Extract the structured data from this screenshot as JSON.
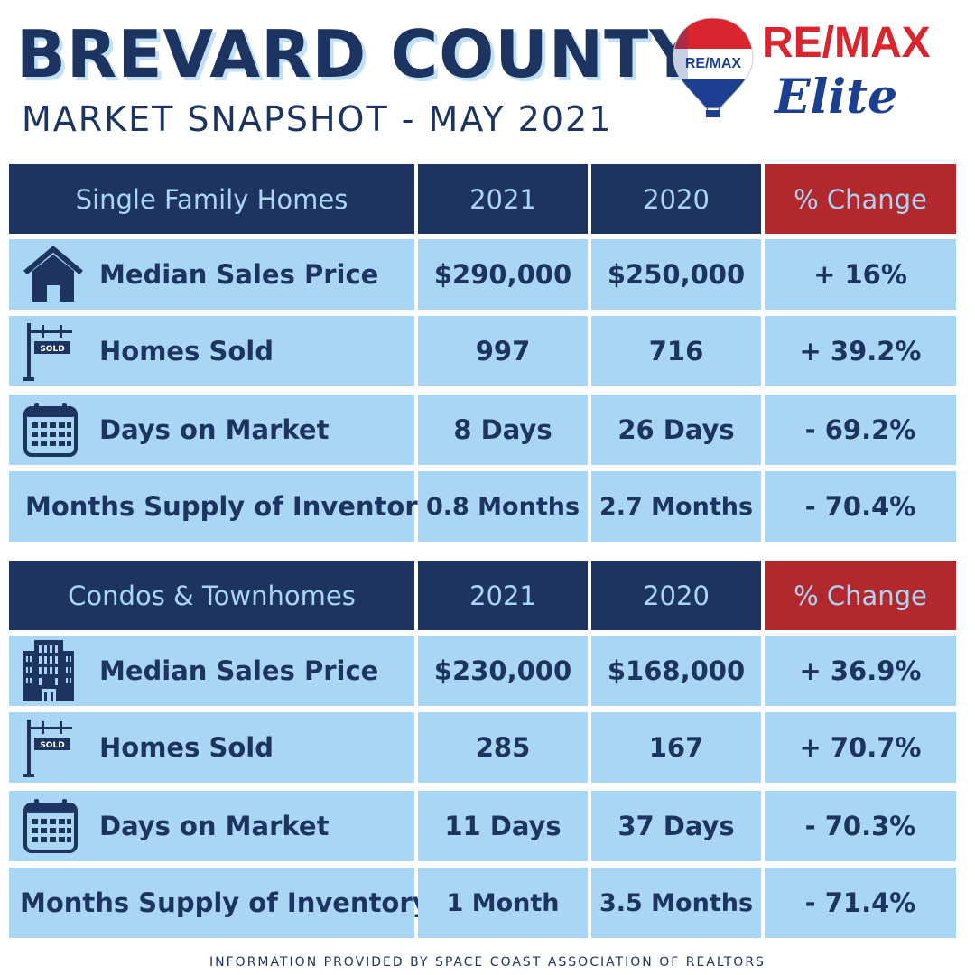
{
  "header": {
    "title": "BREVARD COUNTY",
    "subtitle": "MARKET SNAPSHOT - MAY 2021"
  },
  "logo": {
    "balloon_text": "RE/MAX",
    "brand": "RE/MAX",
    "sub_brand": "Elite",
    "colors": {
      "red": "#d9252e",
      "blue": "#1d3f8f"
    }
  },
  "colors": {
    "navy": "#1d3461",
    "light_blue": "#a9d6f5",
    "red": "#b3282d"
  },
  "tables": [
    {
      "category": "Single Family Homes",
      "col_2021": "2021",
      "col_2020": "2020",
      "col_change": "% Change",
      "rows": [
        {
          "icon": "house-icon",
          "label": "Median Sales Price",
          "v2021": "$290,000",
          "v2020": "$250,000",
          "change": "+ 16%"
        },
        {
          "icon": "sold-sign-icon",
          "label": "Homes Sold",
          "v2021": "997",
          "v2020": "716",
          "change": "+ 39.2%"
        },
        {
          "icon": "calendar-icon",
          "label": "Days on Market",
          "v2021": "8 Days",
          "v2020": "26 Days",
          "change": "- 69.2%"
        },
        {
          "icon": "",
          "label": "Months Supply of Inventory",
          "v2021": "0.8 Months",
          "v2020": "2.7 Months",
          "change": "- 70.4%"
        }
      ]
    },
    {
      "category": "Condos & Townhomes",
      "col_2021": "2021",
      "col_2020": "2020",
      "col_change": "% Change",
      "rows": [
        {
          "icon": "building-icon",
          "label": "Median Sales Price",
          "v2021": "$230,000",
          "v2020": "$168,000",
          "change": "+ 36.9%"
        },
        {
          "icon": "sold-sign-icon",
          "label": "Homes Sold",
          "v2021": "285",
          "v2020": "167",
          "change": "+ 70.7%"
        },
        {
          "icon": "calendar-icon",
          "label": "Days on Market",
          "v2021": "11 Days",
          "v2020": "37 Days",
          "change": "- 70.3%"
        },
        {
          "icon": "",
          "label": "Months Supply of Inventory",
          "v2021": "1 Month",
          "v2020": "3.5 Months",
          "change": "- 71.4%"
        }
      ]
    }
  ],
  "footer": "INFORMATION PROVIDED BY SPACE COAST ASSOCIATION OF REALTORS"
}
